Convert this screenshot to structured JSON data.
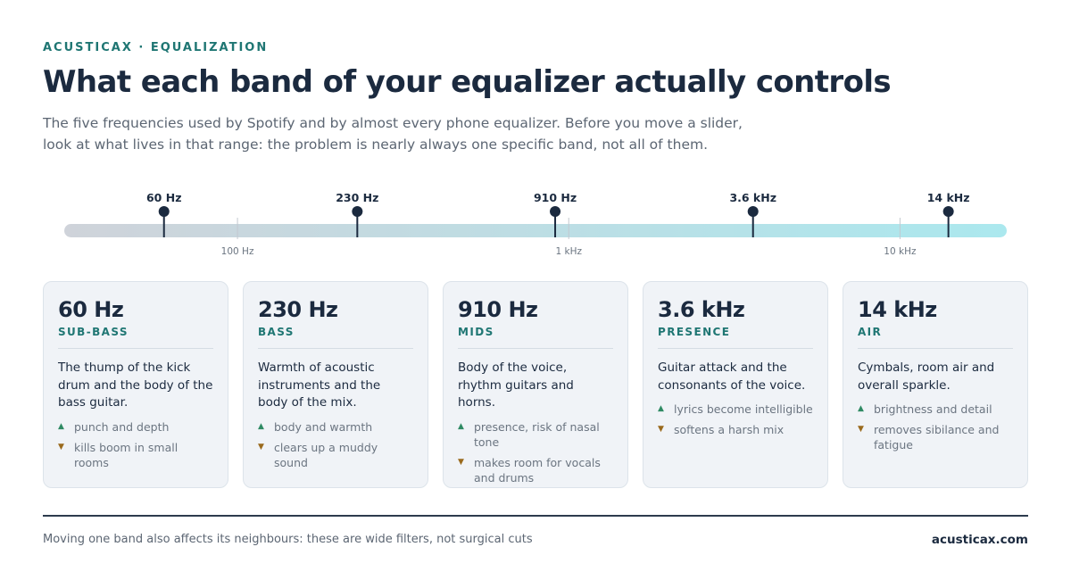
{
  "header": {
    "eyebrow": "ACUSTICAX · EQUALIZATION",
    "title": "What each band of your equalizer actually controls",
    "subtitle_lines": [
      "The five frequencies used by Spotify and by almost every phone equalizer. Before you move a slider,",
      "look at what lives in that range: the problem is nearly always one specific band, not all of them."
    ]
  },
  "scale": {
    "type": "log",
    "range_hz": [
      30,
      21000
    ],
    "markers": [
      {
        "label": "60 Hz",
        "hz": 60
      },
      {
        "label": "230 Hz",
        "hz": 230
      },
      {
        "label": "910 Hz",
        "hz": 910
      },
      {
        "label": "3.6 kHz",
        "hz": 3600
      },
      {
        "label": "14 kHz",
        "hz": 14000
      }
    ],
    "ticks": [
      {
        "label": "100 Hz",
        "hz": 100
      },
      {
        "label": "1 kHz",
        "hz": 1000
      },
      {
        "label": "10 kHz",
        "hz": 10000
      }
    ],
    "colors": {
      "bar_start": "#cfd3da",
      "bar_end": "#abe8ee",
      "marker": "#1b2a3f",
      "tick": "#c3c9d0"
    }
  },
  "bands": [
    {
      "freq": "60 Hz",
      "name": "SUB-BASS",
      "description": "The thump of the kick drum and the body of the bass guitar.",
      "boost": "punch and depth",
      "cut": "kills boom in small rooms"
    },
    {
      "freq": "230 Hz",
      "name": "BASS",
      "description": "Warmth of acoustic instruments and the body of the mix.",
      "boost": "body and warmth",
      "cut": "clears up a muddy sound"
    },
    {
      "freq": "910 Hz",
      "name": "MIDS",
      "description": "Body of the voice, rhythm guitars and horns.",
      "boost": "presence, risk of nasal tone",
      "cut": "makes room for vocals and drums"
    },
    {
      "freq": "3.6 kHz",
      "name": "PRESENCE",
      "description": "Guitar attack and the consonants of the voice.",
      "boost": "lyrics become intelligible",
      "cut": "softens a harsh mix"
    },
    {
      "freq": "14 kHz",
      "name": "AIR",
      "description": "Cymbals, room air and overall sparkle.",
      "boost": "brightness and detail",
      "cut": "removes sibilance and fatigue"
    }
  ],
  "icons": {
    "boost": "triangle-up-icon",
    "cut": "triangle-down-icon",
    "boost_color": "#2f8a63",
    "cut_color": "#9a6a1d"
  },
  "footer": {
    "note": "Moving one band also affects its neighbours: these are wide filters, not surgical cuts",
    "site": "acusticax.com"
  }
}
